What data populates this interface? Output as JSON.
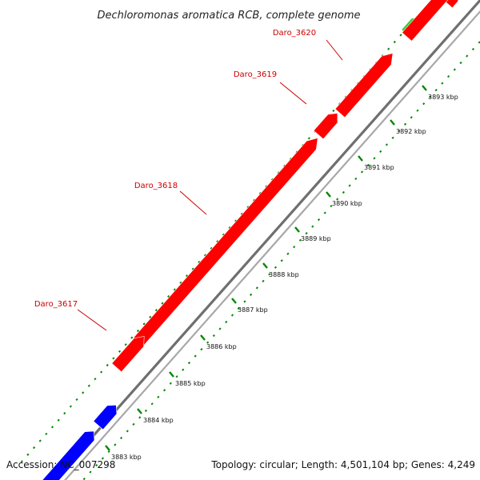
{
  "title": "Dechloromonas aromatica RCB, complete genome",
  "colors": {
    "forward_gene": "#ff0000",
    "reverse_gene": "#0000ff",
    "other_gene": "#33cc33",
    "label": "#cc0000",
    "backbone": "#888888",
    "tick_mark": "#008800"
  },
  "genes": [
    {
      "label": "Daro_3620",
      "color": "other_gene"
    },
    {
      "label": "Daro_3619",
      "color": "forward_gene"
    },
    {
      "label": "Daro_3618",
      "color": "forward_gene"
    },
    {
      "label": "Daro_3617",
      "color": "forward_gene"
    }
  ],
  "scale": {
    "unit": "kbp",
    "ticks": [
      "3893 kbp",
      "3892 kbp",
      "3891 kbp",
      "3890 kbp",
      "3889 kbp",
      "3888 kbp",
      "3887 kbp",
      "3886 kbp",
      "3885 kbp",
      "3884 kbp",
      "3883 kbp"
    ]
  },
  "footer": {
    "accession": "Accession: NC_007298",
    "summary": "Topology: circular; Length: 4,501,104 bp; Genes: 4,249"
  }
}
